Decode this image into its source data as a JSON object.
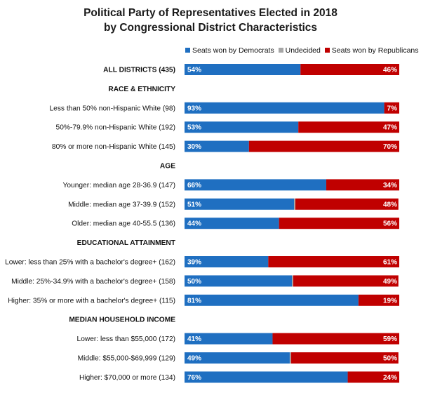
{
  "colors": {
    "democrats": "#1f6fc1",
    "undecided": "#a6a6a6",
    "republicans": "#c00000"
  },
  "chart_data": {
    "type": "bar",
    "orientation": "horizontal",
    "stacked": true,
    "title": "Political Party of Representatives Elected in 2018",
    "subtitle": "by Congressional District Characteristics",
    "legend_position": "top",
    "grid": false,
    "xlim": [
      0,
      100
    ],
    "series": [
      {
        "name": "Seats won by Democrats",
        "color_key": "democrats"
      },
      {
        "name": "Undecided",
        "color_key": "undecided"
      },
      {
        "name": "Seats won by Republicans",
        "color_key": "republicans"
      }
    ],
    "rows": [
      {
        "label": "ALL DISTRICTS (435)",
        "kind": "total",
        "values": [
          54,
          0,
          46
        ],
        "labels": [
          "54%",
          "",
          "46%"
        ]
      },
      {
        "label": "RACE & ETHNICITY",
        "kind": "section"
      },
      {
        "label": "Less than 50% non-Hispanic White (98)",
        "kind": "bar",
        "values": [
          93,
          0,
          7
        ],
        "labels": [
          "93%",
          "",
          "7%"
        ]
      },
      {
        "label": "50%-79.9% non-Hispanic White (192)",
        "kind": "bar",
        "values": [
          53,
          0,
          47
        ],
        "labels": [
          "53%",
          "",
          "47%"
        ]
      },
      {
        "label": "80% or more non-Hispanic White (145)",
        "kind": "bar",
        "values": [
          30,
          0,
          70
        ],
        "labels": [
          "30%",
          "",
          "70%"
        ]
      },
      {
        "label": "AGE",
        "kind": "section"
      },
      {
        "label": "Younger: median age 28-36.9 (147)",
        "kind": "bar",
        "values": [
          66,
          0,
          34
        ],
        "labels": [
          "66%",
          "",
          "34%"
        ]
      },
      {
        "label": "Middle: median age 37-39.9 (152)",
        "kind": "bar",
        "values": [
          51,
          0.6,
          48
        ],
        "labels": [
          "51%",
          "",
          "48%"
        ]
      },
      {
        "label": "Older: median age 40-55.5 (136)",
        "kind": "bar",
        "values": [
          44,
          0,
          56
        ],
        "labels": [
          "44%",
          "",
          "56%"
        ]
      },
      {
        "label": "EDUCATIONAL ATTAINMENT",
        "kind": "section"
      },
      {
        "label": "Lower: less than 25% with a bachelor's degree+ (162)",
        "kind": "bar",
        "values": [
          39,
          0,
          61
        ],
        "labels": [
          "39%",
          "",
          "61%"
        ]
      },
      {
        "label": "Middle: 25%-34.9% with a bachelor's degree+ (158)",
        "kind": "bar",
        "values": [
          50,
          0.6,
          49
        ],
        "labels": [
          "50%",
          "",
          "49%"
        ]
      },
      {
        "label": "Higher: 35% or more with a bachelor's degree+ (115)",
        "kind": "bar",
        "values": [
          81,
          0,
          19
        ],
        "labels": [
          "81%",
          "",
          "19%"
        ]
      },
      {
        "label": "MEDIAN HOUSEHOLD INCOME",
        "kind": "section"
      },
      {
        "label": "Lower: less than $55,000 (172)",
        "kind": "bar",
        "values": [
          41,
          0,
          59
        ],
        "labels": [
          "41%",
          "",
          "59%"
        ]
      },
      {
        "label": "Middle: $55,000-$69,999 (129)",
        "kind": "bar",
        "values": [
          49,
          0.6,
          50
        ],
        "labels": [
          "49%",
          "",
          "50%"
        ]
      },
      {
        "label": "Higher: $70,000 or more (134)",
        "kind": "bar",
        "values": [
          76,
          0,
          24
        ],
        "labels": [
          "76%",
          "",
          "24%"
        ]
      }
    ]
  }
}
